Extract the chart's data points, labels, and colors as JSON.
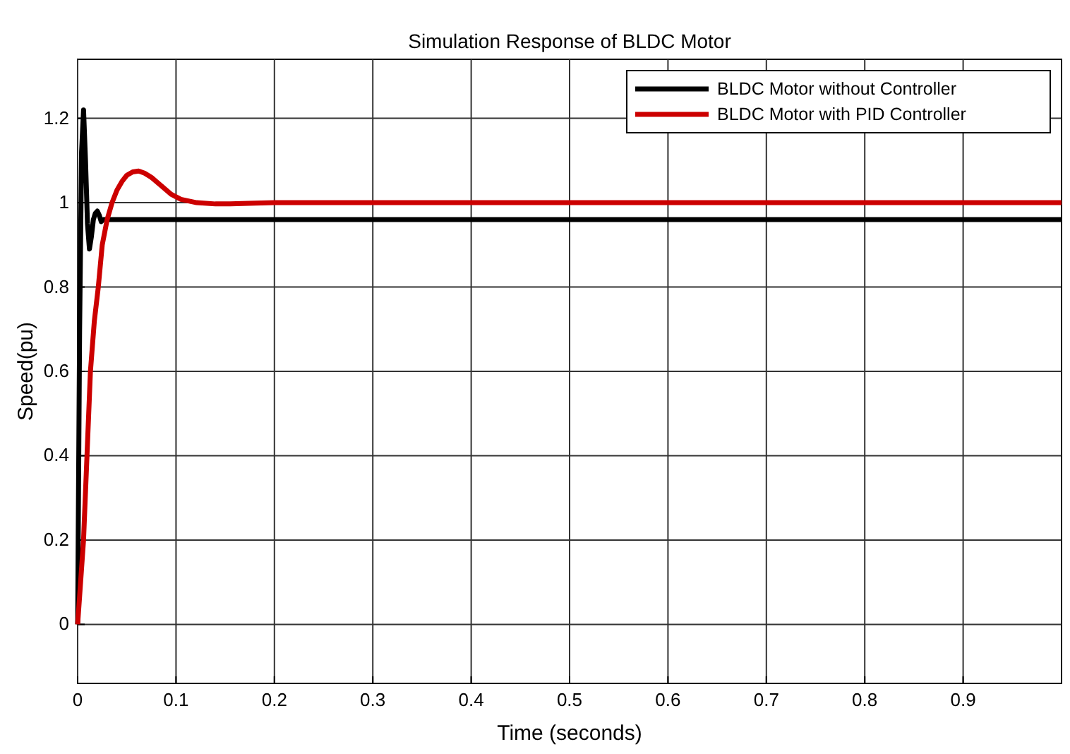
{
  "chart_data": {
    "type": "line",
    "title": "Simulation Response of BLDC Motor",
    "xlabel": "Time (seconds)",
    "ylabel": "Speed(pu)",
    "xlim": [
      0,
      1
    ],
    "ylim": [
      -0.14,
      1.34
    ],
    "xticks": [
      0,
      0.1,
      0.2,
      0.3,
      0.4,
      0.5,
      0.6,
      0.7,
      0.8,
      0.9
    ],
    "yticks": [
      0,
      0.2,
      0.4,
      0.6,
      0.8,
      1,
      1.2
    ],
    "grid": true,
    "legend": "top right",
    "line_style": "solid",
    "series": [
      {
        "name": "BLDC Motor without Controller",
        "color": "#000000",
        "x": [
          0,
          0.002,
          0.004,
          0.006,
          0.008,
          0.01,
          0.012,
          0.014,
          0.016,
          0.018,
          0.02,
          0.022,
          0.024,
          0.026,
          0.03,
          0.04,
          0.1,
          0.5,
          1
        ],
        "values": [
          0,
          0.7,
          1.12,
          1.22,
          1.1,
          0.95,
          0.89,
          0.92,
          0.96,
          0.975,
          0.98,
          0.97,
          0.955,
          0.96,
          0.96,
          0.96,
          0.96,
          0.96,
          0.96
        ]
      },
      {
        "name": "BLDC Motor with PID Controller",
        "color": "#cc0000",
        "x": [
          0,
          0.003,
          0.006,
          0.0095,
          0.013,
          0.017,
          0.021,
          0.025,
          0.03,
          0.035,
          0.04,
          0.045,
          0.05,
          0.056,
          0.062,
          0.068,
          0.075,
          0.085,
          0.095,
          0.105,
          0.121,
          0.14,
          0.155,
          0.18,
          0.2,
          0.3,
          0.5,
          1
        ],
        "values": [
          0,
          0.1,
          0.2,
          0.4,
          0.6,
          0.72,
          0.8,
          0.9,
          0.96,
          1.0,
          1.03,
          1.05,
          1.065,
          1.073,
          1.075,
          1.07,
          1.06,
          1.04,
          1.02,
          1.008,
          1.0,
          0.997,
          0.997,
          0.999,
          1,
          1,
          1,
          1
        ]
      }
    ]
  }
}
